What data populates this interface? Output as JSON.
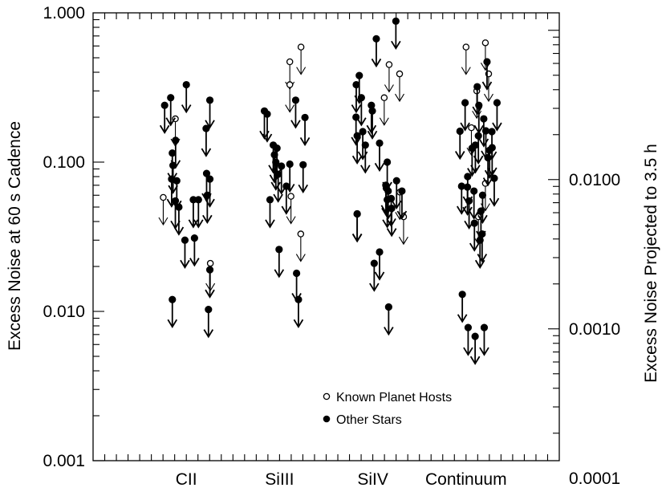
{
  "chart_data": {
    "type": "scatter",
    "title": "",
    "xlabel": "",
    "ylabel": "Excess Noise at 60 s Cadence",
    "ylabel_right": "Excess Noise Projected to 3.5 h",
    "yscale": "log",
    "ylim": [
      0.001,
      1.0
    ],
    "y_ticks": [
      {
        "value": 1.0,
        "label": "1.000"
      },
      {
        "value": 0.1,
        "label": "0.100"
      },
      {
        "value": 0.01,
        "label": "0.010"
      },
      {
        "value": 0.001,
        "label": "0.001"
      }
    ],
    "y_right_ticks": [
      {
        "value": 0.01,
        "label": "0.0100"
      },
      {
        "value": 0.001,
        "label": "0.0010"
      },
      {
        "value": 0.0001,
        "label": "0.0001"
      }
    ],
    "right_axis_factor": 0.1309,
    "x_range": [
      0,
      20
    ],
    "categories": [
      {
        "label": "CII",
        "x": 4
      },
      {
        "label": "SiIII",
        "x": 8
      },
      {
        "label": "SiIV",
        "x": 12
      },
      {
        "label": "Continuum",
        "x": 16
      }
    ],
    "legend": {
      "position": "bottom-center",
      "entries": [
        {
          "label": "Known Planet Hosts",
          "marker": "open-circle"
        },
        {
          "label": "Other Stars",
          "marker": "filled-circle"
        }
      ]
    },
    "upper_limits": true,
    "series": [
      {
        "name": "Known Planet Hosts",
        "marker": "open-circle",
        "points": [
          [
            3.01,
            0.058
          ],
          [
            3.53,
            0.195
          ],
          [
            5.03,
            0.021
          ],
          [
            8.44,
            0.47
          ],
          [
            8.44,
            0.33
          ],
          [
            8.92,
            0.59
          ],
          [
            8.49,
            0.059
          ],
          [
            8.91,
            0.033
          ],
          [
            12.49,
            0.27
          ],
          [
            12.7,
            0.45
          ],
          [
            13.15,
            0.39
          ],
          [
            13.16,
            0.063
          ],
          [
            13.32,
            0.043
          ],
          [
            16.0,
            0.59
          ],
          [
            16.23,
            0.17
          ],
          [
            16.46,
            0.3
          ],
          [
            16.53,
            0.043
          ],
          [
            16.83,
            0.63
          ],
          [
            16.97,
            0.39
          ],
          [
            16.83,
            0.072
          ]
        ]
      },
      {
        "name": "Other Stars",
        "marker": "filled-circle",
        "points": [
          [
            3.07,
            0.24
          ],
          [
            3.33,
            0.27
          ],
          [
            4.0,
            0.33
          ],
          [
            5.01,
            0.26
          ],
          [
            3.4,
            0.115
          ],
          [
            3.37,
            0.077
          ],
          [
            3.43,
            0.095
          ],
          [
            3.54,
            0.14
          ],
          [
            3.59,
            0.075
          ],
          [
            3.68,
            0.05
          ],
          [
            3.53,
            0.055
          ],
          [
            3.94,
            0.03
          ],
          [
            4.3,
            0.056
          ],
          [
            4.52,
            0.056
          ],
          [
            4.85,
            0.168
          ],
          [
            4.87,
            0.084
          ],
          [
            5.01,
            0.077
          ],
          [
            4.9,
            0.06
          ],
          [
            4.35,
            0.031
          ],
          [
            5.01,
            0.019
          ],
          [
            3.4,
            0.012
          ],
          [
            4.95,
            0.0103
          ],
          [
            7.35,
            0.22
          ],
          [
            7.47,
            0.21
          ],
          [
            7.73,
            0.13
          ],
          [
            7.78,
            0.112
          ],
          [
            7.89,
            0.124
          ],
          [
            7.84,
            0.1
          ],
          [
            8.08,
            0.094
          ],
          [
            7.94,
            0.083
          ],
          [
            8.44,
            0.097
          ],
          [
            9.01,
            0.096
          ],
          [
            9.09,
            0.199
          ],
          [
            8.69,
            0.26
          ],
          [
            8.29,
            0.069
          ],
          [
            7.59,
            0.056
          ],
          [
            7.98,
            0.026
          ],
          [
            8.73,
            0.018
          ],
          [
            8.81,
            0.012
          ],
          [
            11.28,
            0.2
          ],
          [
            11.33,
            0.15
          ],
          [
            11.29,
            0.33
          ],
          [
            11.42,
            0.38
          ],
          [
            11.51,
            0.27
          ],
          [
            11.57,
            0.16
          ],
          [
            11.68,
            0.13
          ],
          [
            11.94,
            0.24
          ],
          [
            11.98,
            0.22
          ],
          [
            12.15,
            0.67
          ],
          [
            12.29,
            0.134
          ],
          [
            12.56,
            0.07
          ],
          [
            12.58,
            0.067
          ],
          [
            12.66,
            0.064
          ],
          [
            12.79,
            0.057
          ],
          [
            12.81,
            0.049
          ],
          [
            12.62,
            0.056
          ],
          [
            12.62,
            0.1
          ],
          [
            12.99,
            0.88
          ],
          [
            13.02,
            0.075
          ],
          [
            13.25,
            0.064
          ],
          [
            11.33,
            0.045
          ],
          [
            12.06,
            0.021
          ],
          [
            12.29,
            0.025
          ],
          [
            12.68,
            0.0107
          ],
          [
            11.33,
            0.045
          ],
          [
            15.81,
            0.069
          ],
          [
            15.74,
            0.161
          ],
          [
            15.96,
            0.25
          ],
          [
            16.07,
            0.08
          ],
          [
            16.06,
            0.068
          ],
          [
            16.13,
            0.055
          ],
          [
            16.26,
            0.124
          ],
          [
            16.34,
            0.064
          ],
          [
            16.4,
            0.13
          ],
          [
            16.48,
            0.32
          ],
          [
            16.53,
            0.15
          ],
          [
            16.55,
            0.24
          ],
          [
            16.64,
            0.047
          ],
          [
            16.71,
            0.06
          ],
          [
            16.76,
            0.195
          ],
          [
            16.85,
            0.162
          ],
          [
            16.9,
            0.47
          ],
          [
            16.94,
            0.107
          ],
          [
            17.01,
            0.12
          ],
          [
            17.11,
            0.16
          ],
          [
            17.12,
            0.125
          ],
          [
            17.21,
            0.078
          ],
          [
            17.33,
            0.25
          ],
          [
            16.36,
            0.039
          ],
          [
            16.69,
            0.033
          ],
          [
            16.6,
            0.03
          ],
          [
            15.84,
            0.013
          ],
          [
            16.09,
            0.0078
          ],
          [
            16.39,
            0.0068
          ],
          [
            16.78,
            0.0078
          ]
        ]
      }
    ]
  }
}
